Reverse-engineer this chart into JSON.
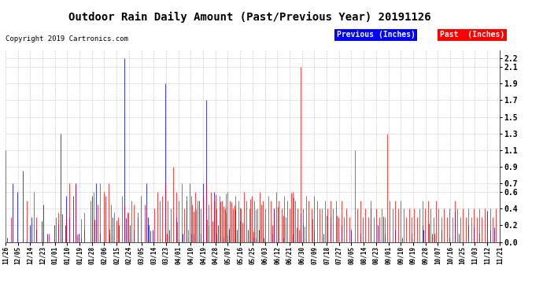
{
  "title": "Outdoor Rain Daily Amount (Past/Previous Year) 20191126",
  "copyright": "Copyright 2019 Cartronics.com",
  "legend_prev_label": "Previous (Inches)",
  "legend_past_label": "Past  (Inches)",
  "legend_prev_color": "#0000ff",
  "legend_past_color": "#ff0000",
  "yticks": [
    0.0,
    0.2,
    0.4,
    0.6,
    0.7,
    0.9,
    1.1,
    1.3,
    1.5,
    1.7,
    1.9,
    2.1,
    2.2
  ],
  "ylim": [
    0.0,
    2.3
  ],
  "background_color": "#ffffff",
  "grid_color": "#bbbbbb",
  "title_fontsize": 10,
  "copyright_fontsize": 6.5,
  "legend_fontsize": 7,
  "xtick_fontsize": 5.5,
  "ytick_fontsize": 7,
  "x_tick_labels": [
    "11/26",
    "12/05",
    "12/14",
    "12/23",
    "01/01",
    "01/10",
    "01/19",
    "01/28",
    "02/06",
    "02/15",
    "02/24",
    "03/05",
    "03/14",
    "03/23",
    "04/01",
    "04/10",
    "04/19",
    "04/28",
    "05/07",
    "05/16",
    "05/25",
    "06/03",
    "06/12",
    "06/21",
    "06/30",
    "07/09",
    "07/18",
    "07/27",
    "08/05",
    "08/14",
    "08/23",
    "09/01",
    "09/10",
    "09/19",
    "09/28",
    "10/07",
    "10/16",
    "10/25",
    "11/03",
    "11/12",
    "11/21"
  ],
  "n_days": 366
}
